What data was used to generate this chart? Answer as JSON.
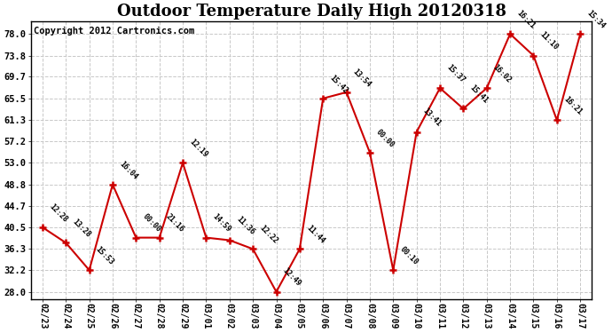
{
  "title": "Outdoor Temperature Daily High 20120318",
  "copyright": "Copyright 2012 Cartronics.com",
  "x_labels": [
    "02/23",
    "02/24",
    "02/25",
    "02/26",
    "02/27",
    "02/28",
    "02/29",
    "03/01",
    "03/02",
    "03/03",
    "03/04",
    "03/05",
    "03/06",
    "03/07",
    "03/08",
    "03/09",
    "03/10",
    "03/11",
    "03/12",
    "03/13",
    "03/14",
    "03/15",
    "03/16",
    "03/17"
  ],
  "y_values": [
    40.5,
    37.5,
    32.2,
    48.8,
    38.5,
    38.5,
    53.0,
    38.5,
    38.0,
    36.3,
    28.0,
    36.3,
    65.5,
    66.7,
    55.0,
    32.2,
    59.0,
    67.5,
    63.5,
    67.5,
    78.0,
    73.8,
    61.3,
    78.0
  ],
  "point_labels": [
    "12:28",
    "13:28",
    "15:53",
    "16:04",
    "00:00",
    "21:16",
    "12:19",
    "14:59",
    "11:36",
    "12:22",
    "12:49",
    "11:44",
    "15:42",
    "13:54",
    "00:00",
    "00:10",
    "13:41",
    "15:37",
    "15:41",
    "16:02",
    "16:21",
    "11:10",
    "16:21",
    "15:34"
  ],
  "y_ticks": [
    28.0,
    32.2,
    36.3,
    40.5,
    44.7,
    48.8,
    53.0,
    57.2,
    61.3,
    65.5,
    69.7,
    73.8,
    78.0
  ],
  "ylim": [
    26.5,
    80.5
  ],
  "line_color": "#cc0000",
  "marker_color": "#cc0000",
  "background_color": "#ffffff",
  "grid_color": "#c8c8c8",
  "title_fontsize": 13,
  "copyright_fontsize": 7.5
}
